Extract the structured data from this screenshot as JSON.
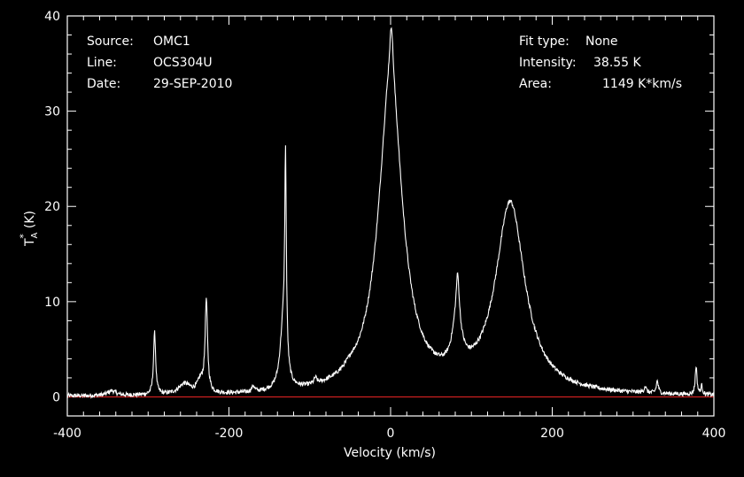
{
  "info": {
    "source_label": "Source:",
    "source_value": "OMC1",
    "line_label": "Line:",
    "line_value": "OCS304U",
    "date_label": "Date:",
    "date_value": "29-SEP-2010",
    "fit_label": "Fit type:",
    "fit_value": "None",
    "intensity_label": "Intensity:",
    "intensity_value": "38.55 K",
    "area_label": "Area:",
    "area_value": "1149 K*km/s"
  },
  "chart_data": {
    "type": "line",
    "xlabel": "Velocity (km/s)",
    "ylabel_main": "T",
    "ylabel_sup": "*",
    "ylabel_sub": "A",
    "ylabel_unit": "(K)",
    "xlim": [
      -400,
      400
    ],
    "ylim": [
      -2,
      40
    ],
    "xticks": [
      -400,
      -200,
      0,
      200,
      400
    ],
    "yticks": [
      0,
      10,
      20,
      30,
      40
    ],
    "baseline": 0,
    "colors": {
      "spectrum": "#ffffff",
      "baseline": "#cc2020",
      "axes": "#ffffff",
      "background": "#000000"
    },
    "components": [
      {
        "center": -345,
        "amp": 0.5,
        "width": 6
      },
      {
        "center": -292,
        "amp": 6.5,
        "width": 1.6
      },
      {
        "center": -255,
        "amp": 1.1,
        "width": 9
      },
      {
        "center": -235,
        "amp": 1.3,
        "width": 5
      },
      {
        "center": -228,
        "amp": 9.5,
        "width": 1.8
      },
      {
        "center": -170,
        "amp": 0.6,
        "width": 2
      },
      {
        "center": -133,
        "amp": 6.5,
        "width": 4.5
      },
      {
        "center": -130,
        "amp": 21.0,
        "width": 1.2
      },
      {
        "center": -93,
        "amp": 0.6,
        "width": 2
      },
      {
        "center": -50,
        "amp": 0.4,
        "width": 8
      },
      {
        "center": 0,
        "amp": 33.0,
        "width": 18
      },
      {
        "center": 1,
        "amp": 5.5,
        "width": 2.5
      },
      {
        "center": 83,
        "amp": 4.5,
        "width": 2.2
      },
      {
        "center": 82,
        "amp": 5.0,
        "width": 7
      },
      {
        "center": 148,
        "amp": 20.0,
        "width": 22
      },
      {
        "center": 315,
        "amp": 0.7,
        "width": 1.5
      },
      {
        "center": 330,
        "amp": 1.3,
        "width": 1.5
      },
      {
        "center": 378,
        "amp": 3.0,
        "width": 1.3
      },
      {
        "center": 385,
        "amp": 0.9,
        "width": 1.2
      }
    ]
  }
}
